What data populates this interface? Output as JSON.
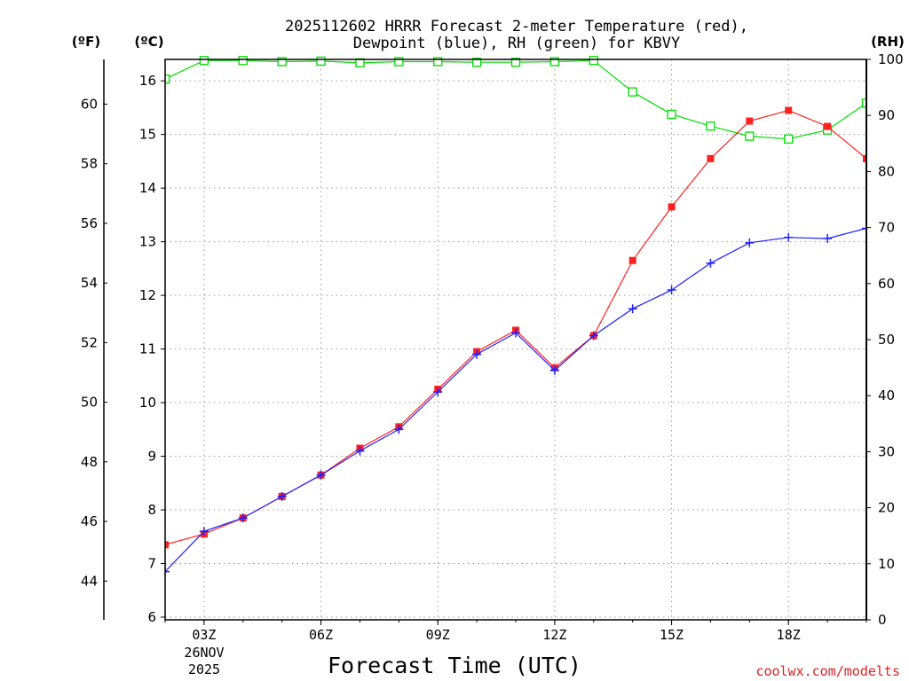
{
  "chart_data": {
    "type": "line",
    "title_lines": [
      "2025112602 HRRR Forecast 2-meter Temperature (red),",
      "Dewpoint (blue), RH (green) for KBVY"
    ],
    "xlabel": "Forecast Time (UTC)",
    "credit": "coolwx.com/modelts",
    "date_label_lines": [
      "26NOV",
      "2025"
    ],
    "x_hours": [
      2,
      3,
      4,
      5,
      6,
      7,
      8,
      9,
      10,
      11,
      12,
      13,
      14,
      15,
      16,
      17,
      18,
      19,
      20
    ],
    "x_range": [
      2,
      20
    ],
    "x_ticks": [
      {
        "hour": 3,
        "label": "03Z"
      },
      {
        "hour": 6,
        "label": "06Z"
      },
      {
        "hour": 9,
        "label": "09Z"
      },
      {
        "hour": 12,
        "label": "12Z"
      },
      {
        "hour": 15,
        "label": "15Z"
      },
      {
        "hour": 18,
        "label": "18Z"
      }
    ],
    "axes": {
      "celsius": {
        "unit_label": "(ºC)",
        "range": [
          5.95,
          16.4
        ],
        "ticks": [
          "6",
          "7",
          "8",
          "9",
          "10",
          "11",
          "12",
          "13",
          "14",
          "15",
          "16"
        ]
      },
      "fahrenheit": {
        "unit_label": "(ºF)",
        "range": [
          42.7,
          61.5
        ],
        "ticks": [
          "44",
          "46",
          "48",
          "50",
          "52",
          "54",
          "56",
          "58",
          "60"
        ]
      },
      "rh": {
        "unit_label": "(RH)",
        "range": [
          0,
          100
        ],
        "ticks": [
          "0",
          "10",
          "20",
          "30",
          "40",
          "50",
          "60",
          "70",
          "80",
          "90",
          "100"
        ]
      }
    },
    "series": [
      {
        "name": "Temperature",
        "axis": "celsius",
        "color": "#ff2020",
        "marker": "filled-square",
        "values": [
          7.35,
          7.55,
          7.85,
          8.25,
          8.65,
          9.15,
          9.55,
          10.25,
          10.95,
          11.35,
          10.65,
          11.25,
          12.65,
          13.65,
          14.55,
          15.25,
          15.45,
          15.15,
          14.55
        ]
      },
      {
        "name": "Dewpoint",
        "axis": "celsius",
        "color": "#2020ff",
        "marker": "plus",
        "values": [
          6.85,
          7.6,
          7.85,
          8.25,
          8.65,
          9.1,
          9.5,
          10.2,
          10.9,
          11.3,
          10.6,
          11.25,
          11.75,
          12.1,
          12.6,
          12.98,
          13.08,
          13.06,
          13.25
        ]
      },
      {
        "name": "RH",
        "axis": "rh",
        "color": "#00dd00",
        "marker": "open-square",
        "values": [
          96.5,
          99.8,
          99.8,
          99.6,
          99.7,
          99.4,
          99.6,
          99.6,
          99.5,
          99.5,
          99.6,
          99.8,
          94.2,
          90.2,
          88.1,
          86.3,
          85.8,
          87.4,
          92.2
        ]
      }
    ]
  }
}
